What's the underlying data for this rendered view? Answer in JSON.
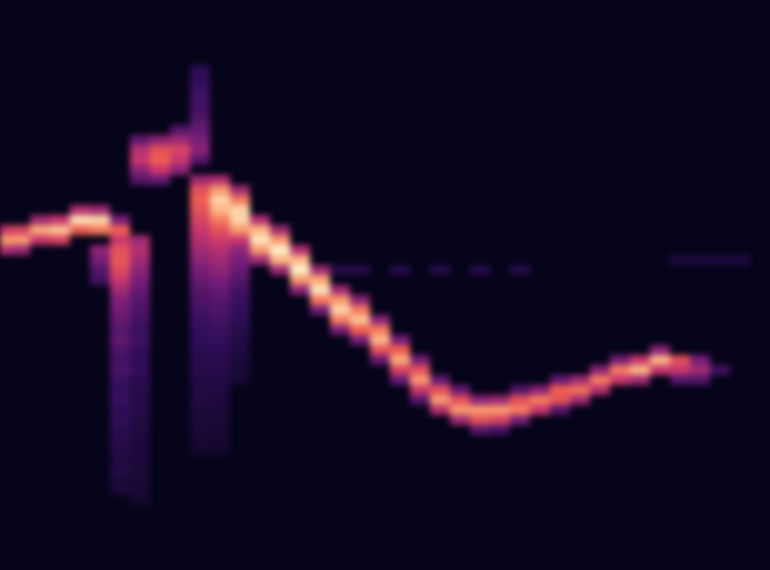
{
  "chart_data": {
    "type": "heatmap",
    "xlim": [
      0,
      77
    ],
    "ylim": [
      0,
      57
    ],
    "tick_labels": false,
    "cell_width": 2,
    "cell_height": 1,
    "value_range": [
      0,
      1
    ],
    "cells": [
      [
        0,
        32,
        0.55
      ],
      [
        0,
        33,
        0.85
      ],
      [
        0,
        34,
        0.6
      ],
      [
        2,
        32,
        0.5
      ],
      [
        2,
        33,
        0.85
      ],
      [
        2,
        34,
        0.65
      ],
      [
        4,
        33,
        0.6
      ],
      [
        4,
        34,
        0.88
      ],
      [
        4,
        35,
        0.5
      ],
      [
        6,
        33,
        0.65
      ],
      [
        6,
        34,
        0.92
      ],
      [
        6,
        35,
        0.6
      ],
      [
        8,
        34,
        0.75
      ],
      [
        8,
        35,
        0.97
      ],
      [
        8,
        36,
        0.55
      ],
      [
        10,
        34,
        0.8
      ],
      [
        10,
        35,
        0.95
      ],
      [
        10,
        36,
        0.5
      ],
      [
        10,
        32,
        0.45
      ],
      [
        10,
        31,
        0.4
      ],
      [
        10,
        30,
        0.3
      ],
      [
        10,
        29,
        0.25
      ],
      [
        12,
        33,
        0.6
      ],
      [
        12,
        34,
        0.75
      ],
      [
        12,
        35,
        0.4
      ],
      [
        12,
        32,
        0.7
      ],
      [
        12,
        31,
        0.72
      ],
      [
        12,
        30,
        0.68
      ],
      [
        12,
        29,
        0.6
      ],
      [
        12,
        28,
        0.5
      ],
      [
        12,
        27,
        0.42
      ],
      [
        12,
        26,
        0.38
      ],
      [
        12,
        25,
        0.35
      ],
      [
        12,
        24,
        0.3
      ],
      [
        12,
        23,
        0.33
      ],
      [
        12,
        22,
        0.28
      ],
      [
        12,
        21,
        0.25
      ],
      [
        12,
        20,
        0.27
      ],
      [
        12,
        19,
        0.22
      ],
      [
        12,
        18,
        0.2
      ],
      [
        12,
        17,
        0.22
      ],
      [
        12,
        16,
        0.18
      ],
      [
        12,
        15,
        0.2
      ],
      [
        12,
        14,
        0.16
      ],
      [
        12,
        13,
        0.15
      ],
      [
        12,
        12,
        0.14
      ],
      [
        12,
        11,
        0.12
      ],
      [
        12,
        10,
        0.13
      ],
      [
        12,
        9,
        0.1
      ],
      [
        12,
        8,
        0.1
      ],
      [
        14,
        33,
        0.5
      ],
      [
        14,
        32,
        0.55
      ],
      [
        14,
        31,
        0.5
      ],
      [
        14,
        30,
        0.45
      ],
      [
        14,
        29,
        0.4
      ],
      [
        14,
        28,
        0.35
      ],
      [
        14,
        27,
        0.3
      ],
      [
        14,
        26,
        0.28
      ],
      [
        14,
        25,
        0.25
      ],
      [
        14,
        24,
        0.22
      ],
      [
        14,
        23,
        0.24
      ],
      [
        14,
        22,
        0.2
      ],
      [
        14,
        21,
        0.18
      ],
      [
        14,
        20,
        0.2
      ],
      [
        14,
        19,
        0.16
      ],
      [
        14,
        18,
        0.15
      ],
      [
        14,
        17,
        0.14
      ],
      [
        14,
        16,
        0.15
      ],
      [
        14,
        15,
        0.12
      ],
      [
        14,
        14,
        0.12
      ],
      [
        14,
        13,
        0.1
      ],
      [
        14,
        12,
        0.1
      ],
      [
        14,
        11,
        0.1
      ],
      [
        14,
        10,
        0.09
      ],
      [
        14,
        9,
        0.09
      ],
      [
        14,
        8,
        0.08
      ],
      [
        14,
        7,
        0.07
      ],
      [
        14,
        43,
        0.35
      ],
      [
        14,
        42,
        0.55
      ],
      [
        14,
        41,
        0.6
      ],
      [
        14,
        40,
        0.45
      ],
      [
        14,
        39,
        0.3
      ],
      [
        16,
        43,
        0.45
      ],
      [
        16,
        42,
        0.7
      ],
      [
        16,
        41,
        0.75
      ],
      [
        16,
        40,
        0.6
      ],
      [
        16,
        39,
        0.35
      ],
      [
        18,
        44,
        0.3
      ],
      [
        18,
        43,
        0.5
      ],
      [
        18,
        42,
        0.65
      ],
      [
        18,
        41,
        0.6
      ],
      [
        18,
        40,
        0.45
      ],
      [
        20,
        45,
        0.3
      ],
      [
        20,
        44,
        0.35
      ],
      [
        20,
        43,
        0.4
      ],
      [
        20,
        42,
        0.45
      ],
      [
        20,
        41,
        0.3
      ],
      [
        20,
        46,
        0.25
      ],
      [
        20,
        47,
        0.25
      ],
      [
        20,
        48,
        0.22
      ],
      [
        20,
        49,
        0.2
      ],
      [
        20,
        50,
        0.18
      ],
      [
        20,
        39,
        0.5
      ],
      [
        20,
        38,
        0.7
      ],
      [
        20,
        37,
        0.75
      ],
      [
        20,
        36,
        0.7
      ],
      [
        20,
        35,
        0.65
      ],
      [
        20,
        34,
        0.6
      ],
      [
        20,
        33,
        0.55
      ],
      [
        20,
        32,
        0.5
      ],
      [
        20,
        31,
        0.45
      ],
      [
        20,
        30,
        0.4
      ],
      [
        20,
        29,
        0.35
      ],
      [
        20,
        28,
        0.3
      ],
      [
        20,
        27,
        0.28
      ],
      [
        20,
        26,
        0.25
      ],
      [
        20,
        25,
        0.22
      ],
      [
        20,
        24,
        0.2
      ],
      [
        20,
        23,
        0.2
      ],
      [
        20,
        22,
        0.17
      ],
      [
        20,
        21,
        0.16
      ],
      [
        20,
        20,
        0.15
      ],
      [
        20,
        19,
        0.13
      ],
      [
        20,
        18,
        0.12
      ],
      [
        20,
        17,
        0.12
      ],
      [
        20,
        16,
        0.1
      ],
      [
        20,
        15,
        0.1
      ],
      [
        20,
        14,
        0.09
      ],
      [
        20,
        13,
        0.08
      ],
      [
        20,
        12,
        0.07
      ],
      [
        22,
        39,
        0.55
      ],
      [
        22,
        38,
        0.85
      ],
      [
        22,
        37,
        0.95
      ],
      [
        22,
        36,
        0.9
      ],
      [
        22,
        35,
        0.8
      ],
      [
        22,
        34,
        0.7
      ],
      [
        22,
        33,
        0.62
      ],
      [
        22,
        32,
        0.55
      ],
      [
        22,
        31,
        0.5
      ],
      [
        22,
        30,
        0.45
      ],
      [
        22,
        29,
        0.4
      ],
      [
        22,
        28,
        0.35
      ],
      [
        22,
        27,
        0.3
      ],
      [
        22,
        26,
        0.28
      ],
      [
        22,
        25,
        0.25
      ],
      [
        22,
        24,
        0.22
      ],
      [
        22,
        23,
        0.2
      ],
      [
        22,
        22,
        0.18
      ],
      [
        22,
        21,
        0.16
      ],
      [
        22,
        20,
        0.15
      ],
      [
        22,
        19,
        0.13
      ],
      [
        22,
        18,
        0.12
      ],
      [
        22,
        17,
        0.1
      ],
      [
        22,
        16,
        0.1
      ],
      [
        22,
        15,
        0.09
      ],
      [
        22,
        14,
        0.08
      ],
      [
        22,
        13,
        0.07
      ],
      [
        22,
        12,
        0.07
      ],
      [
        24,
        38,
        0.5
      ],
      [
        24,
        37,
        0.8
      ],
      [
        24,
        36,
        0.95
      ],
      [
        24,
        35,
        0.95
      ],
      [
        24,
        34,
        0.85
      ],
      [
        24,
        33,
        0.6
      ],
      [
        24,
        32,
        0.45
      ],
      [
        24,
        31,
        0.4
      ],
      [
        24,
        30,
        0.35
      ],
      [
        24,
        29,
        0.3
      ],
      [
        24,
        28,
        0.25
      ],
      [
        24,
        27,
        0.22
      ],
      [
        24,
        26,
        0.2
      ],
      [
        24,
        25,
        0.18
      ],
      [
        24,
        24,
        0.15
      ],
      [
        24,
        23,
        0.13
      ],
      [
        24,
        22,
        0.12
      ],
      [
        24,
        21,
        0.1
      ],
      [
        24,
        20,
        0.09
      ],
      [
        24,
        19,
        0.08
      ],
      [
        26,
        35,
        0.55
      ],
      [
        26,
        34,
        0.9
      ],
      [
        26,
        33,
        0.98
      ],
      [
        26,
        32,
        0.85
      ],
      [
        26,
        31,
        0.5
      ],
      [
        28,
        34,
        0.5
      ],
      [
        28,
        33,
        0.85
      ],
      [
        28,
        32,
        1.0
      ],
      [
        28,
        31,
        0.9
      ],
      [
        28,
        30,
        0.5
      ],
      [
        30,
        32,
        0.55
      ],
      [
        30,
        31,
        0.9
      ],
      [
        30,
        30,
        1.0
      ],
      [
        30,
        29,
        0.85
      ],
      [
        30,
        28,
        0.45
      ],
      [
        32,
        30,
        0.5
      ],
      [
        32,
        29,
        0.88
      ],
      [
        32,
        28,
        0.98
      ],
      [
        32,
        27,
        0.8
      ],
      [
        32,
        26,
        0.4
      ],
      [
        34,
        30,
        0.15
      ],
      [
        34,
        28,
        0.5
      ],
      [
        34,
        27,
        0.85
      ],
      [
        34,
        26,
        0.95
      ],
      [
        34,
        25,
        0.8
      ],
      [
        34,
        24,
        0.4
      ],
      [
        36,
        30,
        0.15
      ],
      [
        36,
        27,
        0.45
      ],
      [
        36,
        26,
        0.8
      ],
      [
        36,
        25,
        0.92
      ],
      [
        36,
        24,
        0.75
      ],
      [
        36,
        23,
        0.4
      ],
      [
        38,
        25,
        0.45
      ],
      [
        38,
        24,
        0.8
      ],
      [
        38,
        23,
        0.9
      ],
      [
        38,
        22,
        0.7
      ],
      [
        38,
        21,
        0.35
      ],
      [
        40,
        30,
        0.15
      ],
      [
        40,
        23,
        0.4
      ],
      [
        40,
        22,
        0.75
      ],
      [
        40,
        21,
        0.88
      ],
      [
        40,
        20,
        0.65
      ],
      [
        40,
        19,
        0.35
      ],
      [
        42,
        21,
        0.4
      ],
      [
        42,
        20,
        0.7
      ],
      [
        42,
        19,
        0.85
      ],
      [
        42,
        18,
        0.6
      ],
      [
        42,
        17,
        0.3
      ],
      [
        44,
        30,
        0.15
      ],
      [
        44,
        19,
        0.35
      ],
      [
        44,
        18,
        0.7
      ],
      [
        44,
        17,
        0.85
      ],
      [
        44,
        16,
        0.55
      ],
      [
        46,
        18,
        0.35
      ],
      [
        46,
        17,
        0.7
      ],
      [
        46,
        16,
        0.85
      ],
      [
        46,
        15,
        0.5
      ],
      [
        48,
        30,
        0.15
      ],
      [
        48,
        17,
        0.45
      ],
      [
        48,
        16,
        0.85
      ],
      [
        48,
        15,
        0.7
      ],
      [
        48,
        14,
        0.3
      ],
      [
        50,
        17,
        0.5
      ],
      [
        50,
        16,
        0.85
      ],
      [
        50,
        15,
        0.65
      ],
      [
        50,
        14,
        0.25
      ],
      [
        52,
        30,
        0.15
      ],
      [
        52,
        18,
        0.3
      ],
      [
        52,
        17,
        0.7
      ],
      [
        52,
        16,
        0.8
      ],
      [
        52,
        15,
        0.4
      ],
      [
        54,
        18,
        0.45
      ],
      [
        54,
        17,
        0.8
      ],
      [
        54,
        16,
        0.6
      ],
      [
        56,
        19,
        0.35
      ],
      [
        56,
        18,
        0.75
      ],
      [
        56,
        17,
        0.7
      ],
      [
        56,
        16,
        0.3
      ],
      [
        58,
        19,
        0.5
      ],
      [
        58,
        18,
        0.78
      ],
      [
        58,
        17,
        0.5
      ],
      [
        60,
        20,
        0.45
      ],
      [
        60,
        19,
        0.8
      ],
      [
        60,
        18,
        0.55
      ],
      [
        62,
        21,
        0.4
      ],
      [
        62,
        20,
        0.8
      ],
      [
        62,
        19,
        0.6
      ],
      [
        64,
        21,
        0.6
      ],
      [
        64,
        20,
        0.9
      ],
      [
        64,
        19,
        0.5
      ],
      [
        66,
        22,
        0.45
      ],
      [
        66,
        21,
        0.9
      ],
      [
        66,
        20,
        0.6
      ],
      [
        68,
        21,
        0.7
      ],
      [
        68,
        20,
        0.6
      ],
      [
        68,
        19,
        0.3
      ],
      [
        68,
        31,
        0.12
      ],
      [
        70,
        21,
        0.4
      ],
      [
        70,
        20,
        0.5
      ],
      [
        70,
        19,
        0.3
      ],
      [
        70,
        31,
        0.12
      ],
      [
        72,
        20,
        0.25
      ],
      [
        72,
        31,
        0.12
      ],
      [
        74,
        31,
        0.12
      ]
    ]
  }
}
